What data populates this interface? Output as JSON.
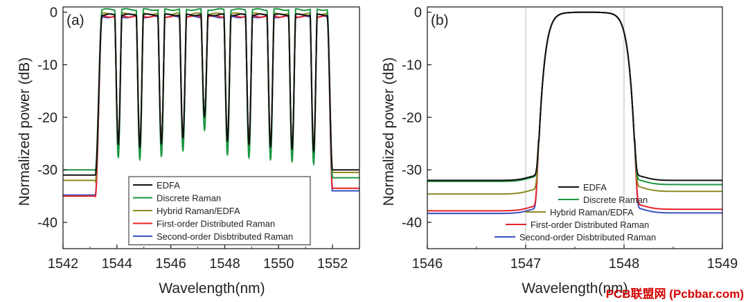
{
  "chart_data": [
    {
      "type": "line",
      "panel_label": "(a)",
      "xlabel": "Wavelength(nm)",
      "ylabel": "Normalized power (dB)",
      "xlim": [
        1542,
        1553
      ],
      "ylim": [
        -45,
        1
      ],
      "xticks": [
        1542,
        1544,
        1546,
        1548,
        1550,
        1552
      ],
      "yticks": [
        0,
        -10,
        -20,
        -30,
        -40
      ],
      "legend_position": "bottom-center",
      "channel_peaks_nm": [
        1543.6,
        1544.45,
        1545.25,
        1546.05,
        1546.85,
        1547.7,
        1548.5,
        1549.3,
        1550.1,
        1550.9,
        1551.7
      ],
      "channel_dips_nm": [
        1544.05,
        1544.85,
        1545.65,
        1546.45,
        1547.25,
        1548.1,
        1548.9,
        1549.7,
        1550.5,
        1551.3
      ],
      "band_edges_nm": [
        1543.2,
        1552.0
      ],
      "series": [
        {
          "name": "EDFA",
          "color": "#111111",
          "peak_db": -0.5,
          "floor_left_db": -31,
          "floor_right_db": -30
        },
        {
          "name": "Discrete Raman",
          "color": "#1a9641",
          "peak_db": 0.5,
          "floor_left_db": -30,
          "floor_right_db": -31.5
        },
        {
          "name": "Hybrid Raman/EDFA",
          "color": "#8c8a20",
          "peak_db": -0.3,
          "floor_left_db": -32,
          "floor_right_db": -30.5
        },
        {
          "name": "First-order Distributed Raman",
          "color": "#e8202a",
          "peak_db": -0.8,
          "floor_left_db": -35,
          "floor_right_db": -33.5
        },
        {
          "name": "Second-order Disbtributed Raman",
          "color": "#3a4fc2",
          "peak_db": -0.9,
          "floor_left_db": -34.8,
          "floor_right_db": -34
        }
      ]
    },
    {
      "type": "line",
      "panel_label": "(b)",
      "xlabel": "Wavelength(nm)",
      "ylabel": "Normalized power (dB)",
      "xlim": [
        1546,
        1549
      ],
      "ylim": [
        -45,
        1
      ],
      "xticks": [
        1546,
        1547,
        1548,
        1549
      ],
      "yticks": [
        0,
        -10,
        -20,
        -30,
        -40
      ],
      "grid_x": [
        1547,
        1548
      ],
      "legend_position": "bottom-center",
      "center_nm": 1547.62,
      "edges_nm": [
        1547.2,
        1548.0
      ],
      "series": [
        {
          "name": "EDFA",
          "color": "#111111",
          "floor_db": -32
        },
        {
          "name": "Discrete Raman",
          "color": "#1a9641",
          "floor_db": -32.2,
          "floor_right_db": -32.8
        },
        {
          "name": "Hybrid Raman/EDFA",
          "color": "#8c8a20",
          "floor_db": -34.6,
          "floor_right_db": -34.1
        },
        {
          "name": "First-order Distributed Raman",
          "color": "#e8202a",
          "floor_db": -37.8,
          "floor_right_db": -37.5
        },
        {
          "name": "Second-order Disbtributed Raman",
          "color": "#3a4fc2",
          "floor_db": -38.3,
          "floor_right_db": -38.2
        }
      ]
    }
  ],
  "watermark": "PCB联盟网 (Pcbbar.com)"
}
